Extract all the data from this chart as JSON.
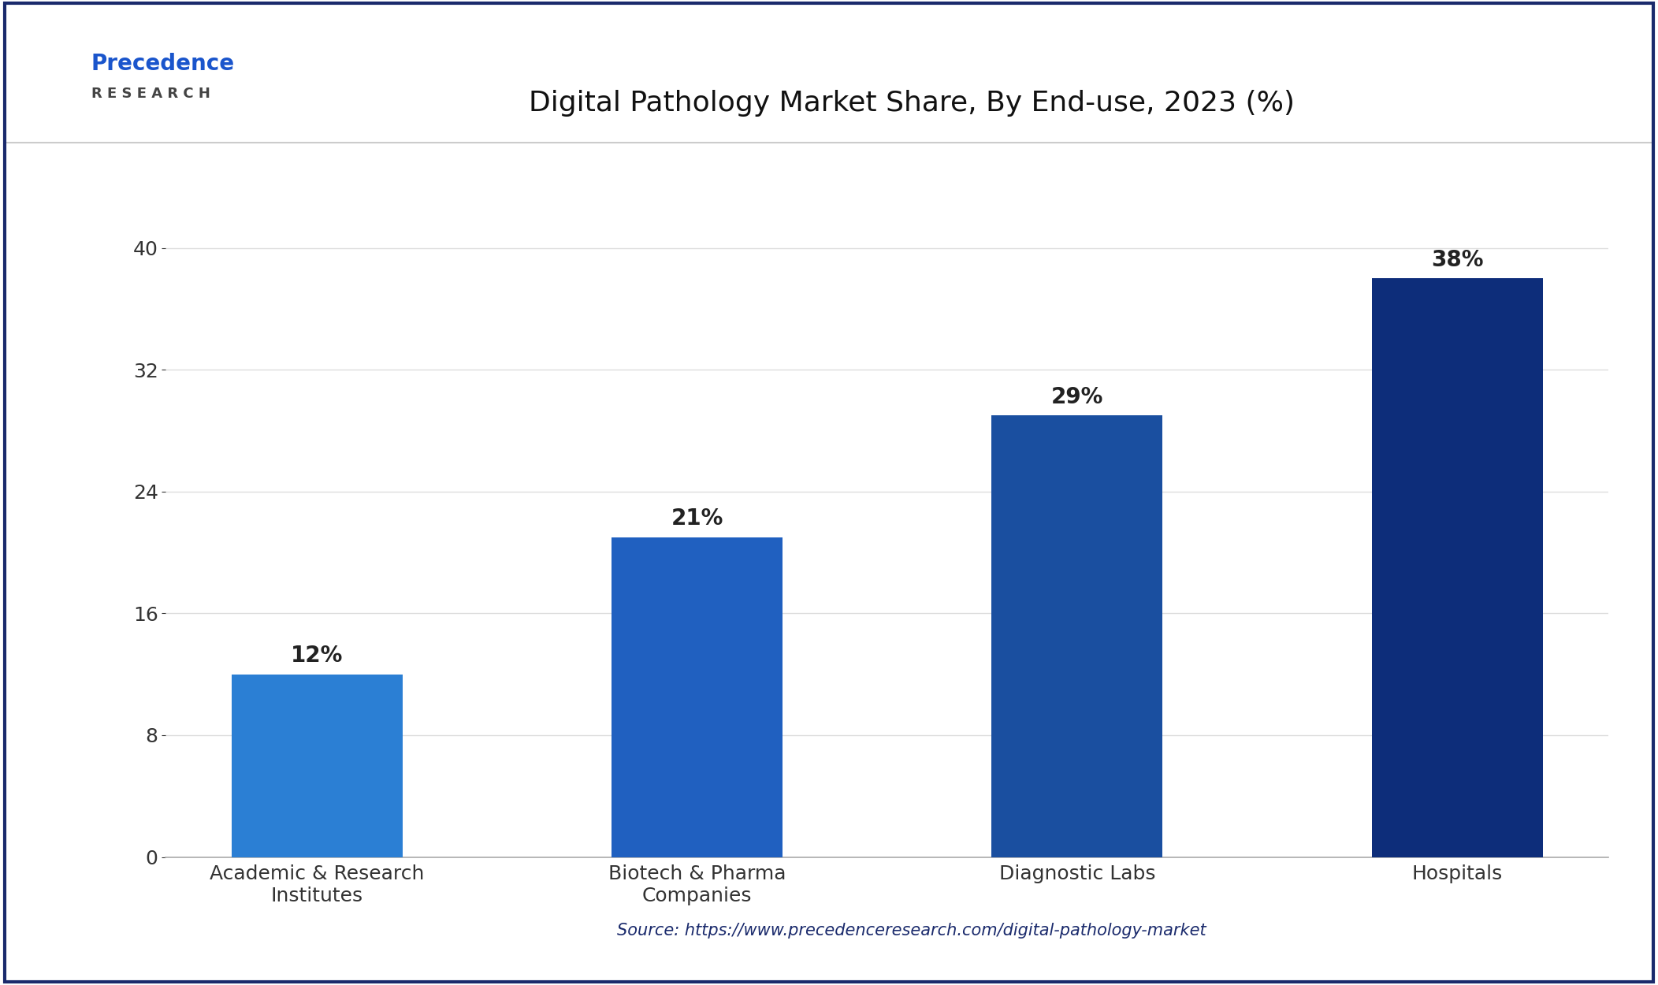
{
  "title": "Digital Pathology Market Share, By End-use, 2023 (%)",
  "categories": [
    "Academic & Research\nInstitutes",
    "Biotech & Pharma\nCompanies",
    "Diagnostic Labs",
    "Hospitals"
  ],
  "values": [
    12,
    21,
    29,
    38
  ],
  "labels": [
    "12%",
    "21%",
    "29%",
    "38%"
  ],
  "bar_colors": [
    "#2b7fd4",
    "#2060c0",
    "#1a4fa0",
    "#0d2d7a"
  ],
  "ylim": [
    0,
    44
  ],
  "yticks": [
    0,
    8,
    16,
    24,
    32,
    40
  ],
  "background_color": "#ffffff",
  "title_fontsize": 26,
  "tick_fontsize": 18,
  "label_fontsize": 20,
  "source_text": "Source: https://www.precedenceresearch.com/digital-pathology-market",
  "outer_border_color": "#1a2a6c",
  "grid_color": "#dddddd",
  "logo_text": "Precedence",
  "logo_sub_text": "R E S E A R C H"
}
